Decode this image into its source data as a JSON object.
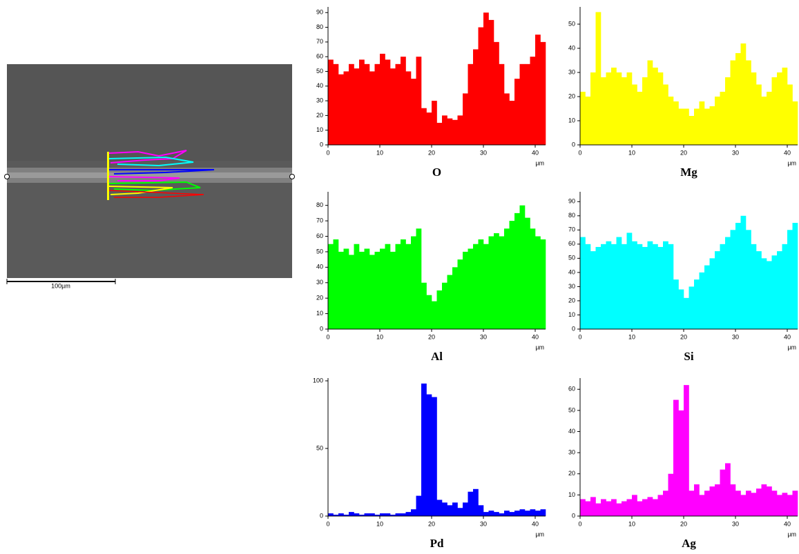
{
  "image": {
    "scale_bar": "100µm"
  },
  "chart_data": [
    {
      "type": "histogram",
      "title": "O",
      "x_label": "µm",
      "color": "#ff0000",
      "bins": [
        0,
        1,
        2,
        3,
        4,
        5,
        6,
        7,
        8,
        9,
        10,
        11,
        12,
        13,
        14,
        15,
        16,
        17,
        18,
        19,
        20,
        21,
        22,
        23,
        24,
        25,
        26,
        27,
        28,
        29,
        30,
        31,
        32,
        33,
        34,
        35,
        36,
        37,
        38,
        39,
        40,
        41,
        42
      ],
      "values": [
        58,
        55,
        48,
        50,
        55,
        52,
        58,
        55,
        50,
        55,
        62,
        58,
        52,
        55,
        60,
        50,
        45,
        60,
        25,
        22,
        30,
        15,
        20,
        18,
        17,
        20,
        35,
        55,
        65,
        80,
        90,
        85,
        70,
        55,
        35,
        30,
        45,
        55,
        55,
        60,
        75,
        70
      ],
      "xlim": [
        0,
        42
      ],
      "xticks": [
        0,
        10,
        20,
        30,
        40
      ],
      "ylim": [
        0,
        92
      ],
      "yticks": [
        0,
        10,
        20,
        30,
        40,
        50,
        60,
        70,
        80,
        90
      ]
    },
    {
      "type": "histogram",
      "title": "Mg",
      "x_label": "µm",
      "color": "#ffff00",
      "bins": [
        0,
        1,
        2,
        3,
        4,
        5,
        6,
        7,
        8,
        9,
        10,
        11,
        12,
        13,
        14,
        15,
        16,
        17,
        18,
        19,
        20,
        21,
        22,
        23,
        24,
        25,
        26,
        27,
        28,
        29,
        30,
        31,
        32,
        33,
        34,
        35,
        36,
        37,
        38,
        39,
        40,
        41,
        42
      ],
      "values": [
        22,
        20,
        30,
        55,
        28,
        30,
        32,
        30,
        28,
        30,
        25,
        22,
        28,
        35,
        32,
        30,
        25,
        20,
        18,
        15,
        15,
        12,
        15,
        18,
        15,
        16,
        20,
        22,
        28,
        35,
        38,
        42,
        35,
        30,
        25,
        20,
        22,
        28,
        30,
        32,
        25,
        18
      ],
      "xlim": [
        0,
        42
      ],
      "xticks": [
        0,
        10,
        20,
        30,
        40
      ],
      "ylim": [
        0,
        56
      ],
      "yticks": [
        0,
        10,
        20,
        30,
        40,
        50
      ]
    },
    {
      "type": "histogram",
      "title": "Al",
      "x_label": "µm",
      "color": "#00ff00",
      "bins": [
        0,
        1,
        2,
        3,
        4,
        5,
        6,
        7,
        8,
        9,
        10,
        11,
        12,
        13,
        14,
        15,
        16,
        17,
        18,
        19,
        20,
        21,
        22,
        23,
        24,
        25,
        26,
        27,
        28,
        29,
        30,
        31,
        32,
        33,
        34,
        35,
        36,
        37,
        38,
        39,
        40,
        41,
        42
      ],
      "values": [
        55,
        58,
        50,
        52,
        48,
        55,
        50,
        52,
        48,
        50,
        52,
        55,
        50,
        55,
        58,
        55,
        60,
        65,
        30,
        22,
        18,
        25,
        30,
        35,
        40,
        45,
        50,
        52,
        55,
        58,
        55,
        60,
        62,
        60,
        65,
        70,
        75,
        80,
        72,
        65,
        60,
        58
      ],
      "xlim": [
        0,
        42
      ],
      "xticks": [
        0,
        10,
        20,
        30,
        40
      ],
      "ylim": [
        0,
        87
      ],
      "yticks": [
        0,
        10,
        20,
        30,
        40,
        50,
        60,
        70,
        80
      ]
    },
    {
      "type": "histogram",
      "title": "Si",
      "x_label": "µm",
      "color": "#00ffff",
      "bins": [
        0,
        1,
        2,
        3,
        4,
        5,
        6,
        7,
        8,
        9,
        10,
        11,
        12,
        13,
        14,
        15,
        16,
        17,
        18,
        19,
        20,
        21,
        22,
        23,
        24,
        25,
        26,
        27,
        28,
        29,
        30,
        31,
        32,
        33,
        34,
        35,
        36,
        37,
        38,
        39,
        40,
        41,
        42
      ],
      "values": [
        65,
        60,
        55,
        58,
        60,
        62,
        60,
        65,
        60,
        68,
        62,
        60,
        58,
        62,
        60,
        58,
        62,
        60,
        35,
        28,
        22,
        30,
        35,
        40,
        45,
        50,
        55,
        60,
        65,
        70,
        75,
        80,
        70,
        60,
        55,
        50,
        48,
        52,
        55,
        60,
        70,
        75
      ],
      "xlim": [
        0,
        42
      ],
      "xticks": [
        0,
        10,
        20,
        30,
        40
      ],
      "ylim": [
        0,
        95
      ],
      "yticks": [
        0,
        10,
        20,
        30,
        40,
        50,
        60,
        70,
        80,
        90
      ]
    },
    {
      "type": "histogram",
      "title": "Pd",
      "x_label": "µm",
      "color": "#0000ff",
      "bins": [
        0,
        1,
        2,
        3,
        4,
        5,
        6,
        7,
        8,
        9,
        10,
        11,
        12,
        13,
        14,
        15,
        16,
        17,
        18,
        19,
        20,
        21,
        22,
        23,
        24,
        25,
        26,
        27,
        28,
        29,
        30,
        31,
        32,
        33,
        34,
        35,
        36,
        37,
        38,
        39,
        40,
        41,
        42
      ],
      "values": [
        2,
        1,
        2,
        1,
        3,
        2,
        1,
        2,
        2,
        1,
        2,
        2,
        1,
        2,
        2,
        3,
        5,
        15,
        98,
        90,
        88,
        12,
        10,
        8,
        10,
        6,
        10,
        18,
        20,
        8,
        3,
        4,
        3,
        2,
        4,
        3,
        4,
        5,
        4,
        5,
        4,
        5
      ],
      "xlim": [
        0,
        42
      ],
      "xticks": [
        0,
        10,
        20,
        30,
        40
      ],
      "ylim": [
        0,
        100
      ],
      "yticks": [
        0,
        50,
        100
      ]
    },
    {
      "type": "histogram",
      "title": "Ag",
      "x_label": "µm",
      "color": "#ff00ff",
      "bins": [
        0,
        1,
        2,
        3,
        4,
        5,
        6,
        7,
        8,
        9,
        10,
        11,
        12,
        13,
        14,
        15,
        16,
        17,
        18,
        19,
        20,
        21,
        22,
        23,
        24,
        25,
        26,
        27,
        28,
        29,
        30,
        31,
        32,
        33,
        34,
        35,
        36,
        37,
        38,
        39,
        40,
        41,
        42
      ],
      "values": [
        8,
        7,
        9,
        6,
        8,
        7,
        8,
        6,
        7,
        8,
        10,
        7,
        8,
        9,
        8,
        10,
        12,
        20,
        55,
        50,
        62,
        12,
        15,
        10,
        12,
        14,
        15,
        22,
        25,
        15,
        12,
        10,
        12,
        11,
        13,
        15,
        14,
        12,
        10,
        11,
        10,
        12
      ],
      "xlim": [
        0,
        42
      ],
      "xticks": [
        0,
        10,
        20,
        30,
        40
      ],
      "ylim": [
        0,
        64
      ],
      "yticks": [
        0,
        10,
        20,
        30,
        40,
        50,
        60
      ]
    }
  ]
}
